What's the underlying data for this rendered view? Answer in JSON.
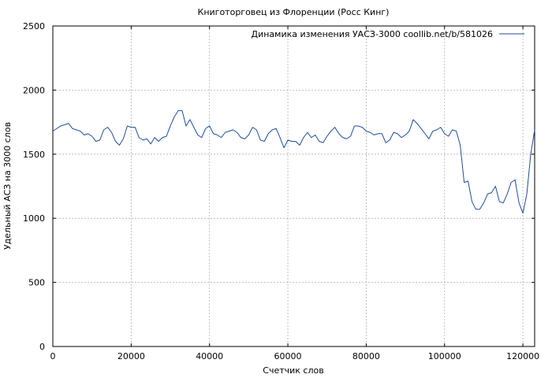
{
  "chart_data": {
    "type": "line",
    "title": "Книготорговец из Флоренции (Росс Кинг)",
    "xlabel": "Счетчик слов",
    "ylabel": "Удельный АСЗ на 3000 слов",
    "xlim": [
      0,
      123000
    ],
    "ylim": [
      0,
      2500
    ],
    "x_ticks": [
      0,
      20000,
      40000,
      60000,
      80000,
      100000,
      120000
    ],
    "x_tick_labels": [
      "0",
      "20000",
      "40000",
      "60000",
      "80000",
      "100000",
      "120000"
    ],
    "y_ticks": [
      0,
      500,
      1000,
      1500,
      2000,
      2500
    ],
    "y_tick_labels": [
      "0",
      "500",
      "1000",
      "1500",
      "2000",
      "2500"
    ],
    "grid": true,
    "legend_position": "top-right",
    "series": [
      {
        "name": "Динамика изменения УАСЗ-3000 coollib.net/b/581026",
        "color": "#1f4e9e",
        "x": [
          0,
          1000,
          2000,
          3000,
          4000,
          5000,
          6000,
          7000,
          8000,
          9000,
          10000,
          11000,
          12000,
          13000,
          14000,
          15000,
          16000,
          17000,
          18000,
          19000,
          20000,
          21000,
          22000,
          23000,
          24000,
          25000,
          26000,
          27000,
          28000,
          29000,
          30000,
          31000,
          32000,
          33000,
          34000,
          35000,
          36000,
          37000,
          38000,
          39000,
          40000,
          41000,
          42000,
          43000,
          44000,
          45000,
          46000,
          47000,
          48000,
          49000,
          50000,
          51000,
          52000,
          53000,
          54000,
          55000,
          56000,
          57000,
          58000,
          59000,
          60000,
          61000,
          62000,
          63000,
          64000,
          65000,
          66000,
          67000,
          68000,
          69000,
          70000,
          71000,
          72000,
          73000,
          74000,
          75000,
          76000,
          77000,
          78000,
          79000,
          80000,
          81000,
          82000,
          83000,
          84000,
          85000,
          86000,
          87000,
          88000,
          89000,
          90000,
          91000,
          92000,
          93000,
          94000,
          95000,
          96000,
          97000,
          98000,
          99000,
          100000,
          101000,
          102000,
          103000,
          104000,
          105000,
          106000,
          107000,
          108000,
          109000,
          110000,
          111000,
          112000,
          113000,
          114000,
          115000,
          116000,
          117000,
          118000,
          119000,
          120000,
          121000,
          122000,
          123000
        ],
        "y": [
          1680,
          1700,
          1720,
          1730,
          1740,
          1700,
          1690,
          1680,
          1650,
          1660,
          1640,
          1600,
          1610,
          1690,
          1710,
          1670,
          1600,
          1570,
          1620,
          1720,
          1710,
          1710,
          1630,
          1610,
          1620,
          1580,
          1630,
          1600,
          1630,
          1640,
          1720,
          1790,
          1840,
          1840,
          1720,
          1770,
          1710,
          1650,
          1630,
          1700,
          1720,
          1660,
          1650,
          1630,
          1670,
          1680,
          1690,
          1670,
          1630,
          1620,
          1650,
          1710,
          1690,
          1610,
          1600,
          1660,
          1690,
          1700,
          1630,
          1550,
          1610,
          1600,
          1600,
          1570,
          1630,
          1670,
          1630,
          1650,
          1600,
          1590,
          1640,
          1680,
          1710,
          1660,
          1630,
          1620,
          1640,
          1720,
          1720,
          1710,
          1680,
          1670,
          1650,
          1660,
          1660,
          1590,
          1610,
          1670,
          1660,
          1630,
          1650,
          1680,
          1770,
          1740,
          1700,
          1660,
          1620,
          1680,
          1690,
          1710,
          1660,
          1640,
          1690,
          1680,
          1570,
          1280,
          1290,
          1130,
          1070,
          1070,
          1120,
          1190,
          1200,
          1250,
          1130,
          1120,
          1190,
          1280,
          1300,
          1120,
          1040,
          1190,
          1500,
          1690
        ]
      }
    ]
  }
}
